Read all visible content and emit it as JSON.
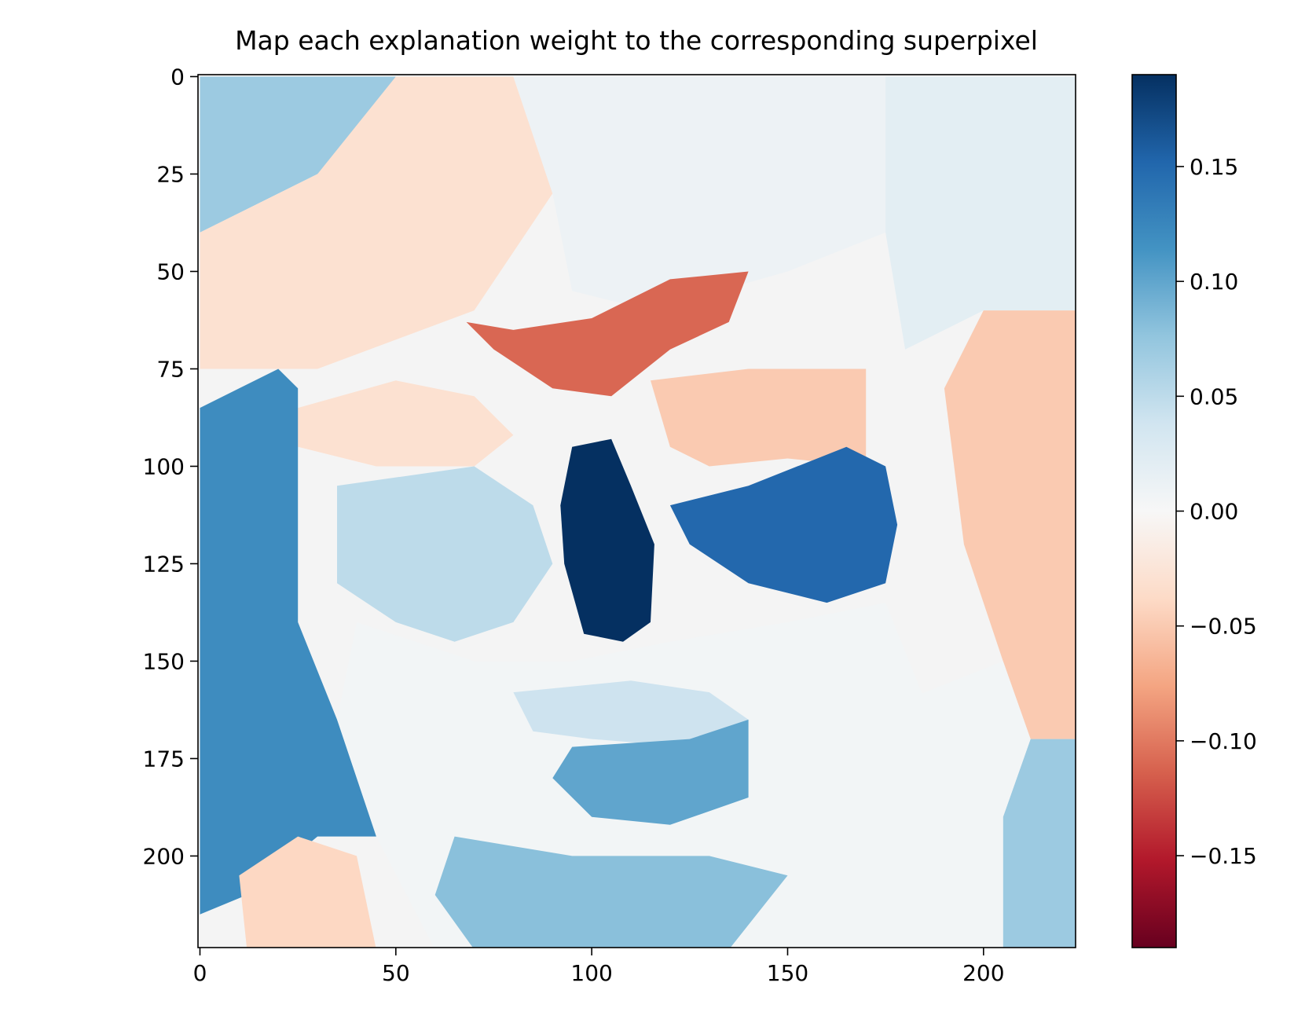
{
  "chart_data": {
    "type": "heatmap",
    "title": "Map each explanation weight to the corresponding superpixel",
    "xlabel": "",
    "ylabel": "",
    "xlim": [
      -0.5,
      223.5
    ],
    "ylim": [
      223.5,
      -0.5
    ],
    "x_ticks": [
      0,
      50,
      100,
      150,
      200
    ],
    "y_ticks": [
      0,
      25,
      50,
      75,
      100,
      125,
      150,
      175,
      200
    ],
    "colormap": "RdBu",
    "colorbar": {
      "vmin": -0.19,
      "vmax": 0.19,
      "ticks": [
        {
          "value": 0.15,
          "label": "0.15"
        },
        {
          "value": 0.1,
          "label": "0.10"
        },
        {
          "value": 0.05,
          "label": "0.05"
        },
        {
          "value": 0.0,
          "label": "0.00"
        },
        {
          "value": -0.05,
          "label": "−0.05"
        },
        {
          "value": -0.1,
          "label": "−0.10"
        },
        {
          "value": -0.15,
          "label": "−0.15"
        }
      ],
      "stops": [
        "#67001f",
        "#b2182b",
        "#d6604d",
        "#f4a582",
        "#fddbc7",
        "#f7f7f7",
        "#d1e5f0",
        "#92c5de",
        "#4393c3",
        "#2166ac",
        "#053061"
      ]
    },
    "grid": false,
    "regions": [
      {
        "name": "background-left-top",
        "weight": 0.07,
        "points": [
          [
            0,
            0
          ],
          [
            50,
            0
          ],
          [
            45,
            12
          ],
          [
            30,
            25
          ],
          [
            0,
            40
          ]
        ]
      },
      {
        "name": "forehead-left",
        "weight": -0.03,
        "points": [
          [
            50,
            0
          ],
          [
            80,
            0
          ],
          [
            90,
            30
          ],
          [
            70,
            60
          ],
          [
            30,
            75
          ],
          [
            0,
            75
          ],
          [
            0,
            40
          ],
          [
            30,
            25
          ]
        ]
      },
      {
        "name": "forehead-center",
        "weight": 0.01,
        "points": [
          [
            80,
            0
          ],
          [
            175,
            0
          ],
          [
            175,
            40
          ],
          [
            150,
            50
          ],
          [
            115,
            60
          ],
          [
            95,
            55
          ],
          [
            90,
            30
          ]
        ]
      },
      {
        "name": "forehead-right",
        "weight": 0.02,
        "points": [
          [
            175,
            0
          ],
          [
            224,
            0
          ],
          [
            224,
            60
          ],
          [
            200,
            60
          ],
          [
            180,
            70
          ],
          [
            175,
            40
          ]
        ]
      },
      {
        "name": "hair-right",
        "weight": -0.05,
        "points": [
          [
            200,
            60
          ],
          [
            224,
            60
          ],
          [
            224,
            170
          ],
          [
            212,
            170
          ],
          [
            205,
            150
          ],
          [
            195,
            120
          ],
          [
            190,
            80
          ]
        ]
      },
      {
        "name": "background-right-low",
        "weight": 0.07,
        "points": [
          [
            212,
            170
          ],
          [
            224,
            170
          ],
          [
            224,
            224
          ],
          [
            205,
            224
          ],
          [
            205,
            190
          ]
        ]
      },
      {
        "name": "brow-left",
        "weight": -0.03,
        "points": [
          [
            25,
            85
          ],
          [
            50,
            78
          ],
          [
            70,
            82
          ],
          [
            80,
            92
          ],
          [
            70,
            100
          ],
          [
            45,
            100
          ],
          [
            25,
            95
          ]
        ]
      },
      {
        "name": "brow-nose-bridge",
        "weight": -0.11,
        "points": [
          [
            68,
            63
          ],
          [
            80,
            65
          ],
          [
            100,
            62
          ],
          [
            120,
            52
          ],
          [
            140,
            50
          ],
          [
            135,
            63
          ],
          [
            120,
            70
          ],
          [
            105,
            82
          ],
          [
            90,
            80
          ],
          [
            75,
            70
          ]
        ]
      },
      {
        "name": "brow-right",
        "weight": -0.05,
        "points": [
          [
            115,
            78
          ],
          [
            140,
            75
          ],
          [
            170,
            75
          ],
          [
            170,
            100
          ],
          [
            150,
            98
          ],
          [
            130,
            100
          ],
          [
            120,
            95
          ]
        ]
      },
      {
        "name": "hair-left",
        "weight": 0.12,
        "points": [
          [
            0,
            85
          ],
          [
            10,
            80
          ],
          [
            20,
            75
          ],
          [
            25,
            80
          ],
          [
            25,
            140
          ],
          [
            35,
            165
          ],
          [
            45,
            180
          ],
          [
            55,
            185
          ],
          [
            50,
            195
          ],
          [
            30,
            195
          ],
          [
            12,
            210
          ],
          [
            0,
            215
          ]
        ]
      },
      {
        "name": "eye-socket-left",
        "weight": 0.05,
        "points": [
          [
            35,
            105
          ],
          [
            70,
            100
          ],
          [
            85,
            110
          ],
          [
            90,
            125
          ],
          [
            80,
            140
          ],
          [
            65,
            145
          ],
          [
            50,
            140
          ],
          [
            35,
            130
          ]
        ]
      },
      {
        "name": "nostril-dark",
        "weight": 0.19,
        "points": [
          [
            95,
            95
          ],
          [
            105,
            93
          ],
          [
            110,
            105
          ],
          [
            116,
            120
          ],
          [
            115,
            140
          ],
          [
            108,
            145
          ],
          [
            98,
            143
          ],
          [
            93,
            125
          ],
          [
            92,
            110
          ]
        ]
      },
      {
        "name": "eye-right",
        "weight": 0.15,
        "points": [
          [
            120,
            110
          ],
          [
            140,
            105
          ],
          [
            165,
            95
          ],
          [
            175,
            100
          ],
          [
            178,
            115
          ],
          [
            175,
            130
          ],
          [
            160,
            135
          ],
          [
            140,
            130
          ],
          [
            125,
            120
          ]
        ]
      },
      {
        "name": "cheek-center",
        "weight": 0.005,
        "points": [
          [
            40,
            140
          ],
          [
            70,
            150
          ],
          [
            95,
            150
          ],
          [
            120,
            145
          ],
          [
            150,
            140
          ],
          [
            175,
            135
          ],
          [
            185,
            160
          ],
          [
            175,
            200
          ],
          [
            150,
            224
          ],
          [
            60,
            224
          ],
          [
            45,
            195
          ],
          [
            35,
            165
          ]
        ]
      },
      {
        "name": "mouth-upper",
        "weight": 0.04,
        "points": [
          [
            80,
            158
          ],
          [
            110,
            155
          ],
          [
            130,
            158
          ],
          [
            140,
            165
          ],
          [
            125,
            172
          ],
          [
            100,
            170
          ],
          [
            85,
            168
          ]
        ]
      },
      {
        "name": "mouth-lower",
        "weight": 0.1,
        "points": [
          [
            95,
            172
          ],
          [
            125,
            170
          ],
          [
            140,
            165
          ],
          [
            140,
            185
          ],
          [
            120,
            192
          ],
          [
            100,
            190
          ],
          [
            90,
            180
          ]
        ]
      },
      {
        "name": "chin",
        "weight": 0.08,
        "points": [
          [
            65,
            195
          ],
          [
            95,
            200
          ],
          [
            130,
            200
          ],
          [
            150,
            205
          ],
          [
            135,
            224
          ],
          [
            70,
            224
          ],
          [
            60,
            210
          ]
        ]
      },
      {
        "name": "neck-left",
        "weight": -0.04,
        "points": [
          [
            10,
            205
          ],
          [
            25,
            195
          ],
          [
            40,
            200
          ],
          [
            45,
            224
          ],
          [
            12,
            224
          ]
        ]
      },
      {
        "name": "background-right-center",
        "weight": 0.005,
        "points": [
          [
            180,
            160
          ],
          [
            205,
            150
          ],
          [
            212,
            170
          ],
          [
            205,
            190
          ],
          [
            205,
            224
          ],
          [
            150,
            224
          ],
          [
            175,
            200
          ]
        ]
      }
    ]
  }
}
